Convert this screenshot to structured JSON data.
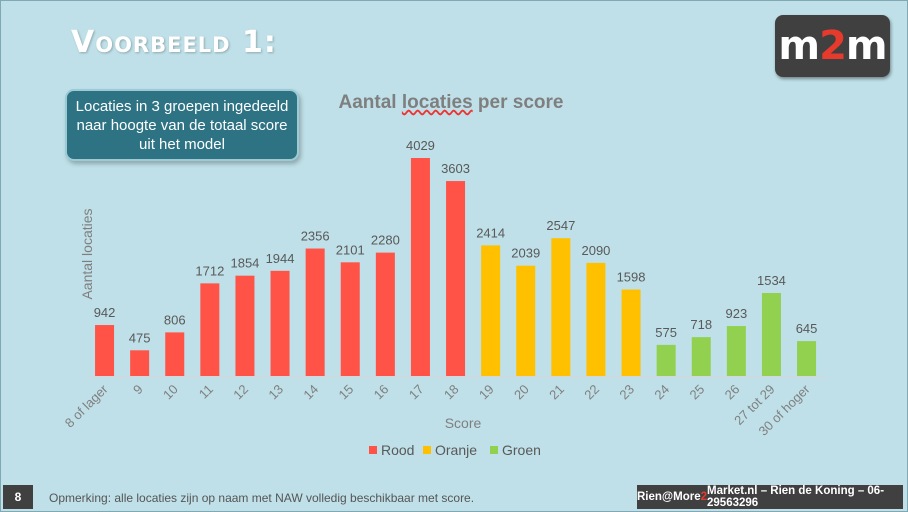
{
  "slide": {
    "title": "Voorbeeld 1:",
    "logo_left": "m",
    "logo_mid": "2",
    "logo_right": "m",
    "callout": "Locaties in 3 groepen ingedeeld naar hoogte van de totaal score uit het model",
    "page_number": "8",
    "note": "Opmerking: alle locaties zijn op naam met NAW volledig beschikbaar met score.",
    "contact_pre": "Rien@More",
    "contact_mid": "2",
    "contact_post": "Market.nl – Rien de Koning – 06-29563296"
  },
  "chart_data": {
    "type": "bar",
    "title_pre": "Aantal ",
    "title_squiggle": "locaties",
    "title_post": " per score",
    "xlabel": "Score",
    "ylabel": "Aantal locaties",
    "categories": [
      "8 of lager",
      "9",
      "10",
      "11",
      "12",
      "13",
      "14",
      "15",
      "16",
      "17",
      "18",
      "19",
      "20",
      "21",
      "22",
      "23",
      "24",
      "25",
      "26",
      "27 tot 29",
      "30 of hoger"
    ],
    "values": [
      942,
      475,
      806,
      1712,
      1854,
      1944,
      2356,
      2101,
      2280,
      4029,
      3603,
      2414,
      2039,
      2547,
      2090,
      1598,
      575,
      718,
      923,
      1534,
      645
    ],
    "groups": [
      "Rood",
      "Rood",
      "Rood",
      "Rood",
      "Rood",
      "Rood",
      "Rood",
      "Rood",
      "Rood",
      "Rood",
      "Rood",
      "Oranje",
      "Oranje",
      "Oranje",
      "Oranje",
      "Oranje",
      "Groen",
      "Groen",
      "Groen",
      "Groen",
      "Groen"
    ],
    "legend": [
      {
        "name": "Rood",
        "color": "#ff5347"
      },
      {
        "name": "Oranje",
        "color": "#ffc000"
      },
      {
        "name": "Groen",
        "color": "#92d050"
      }
    ],
    "ylim": [
      0,
      4029
    ],
    "legend_position": "bottom"
  }
}
